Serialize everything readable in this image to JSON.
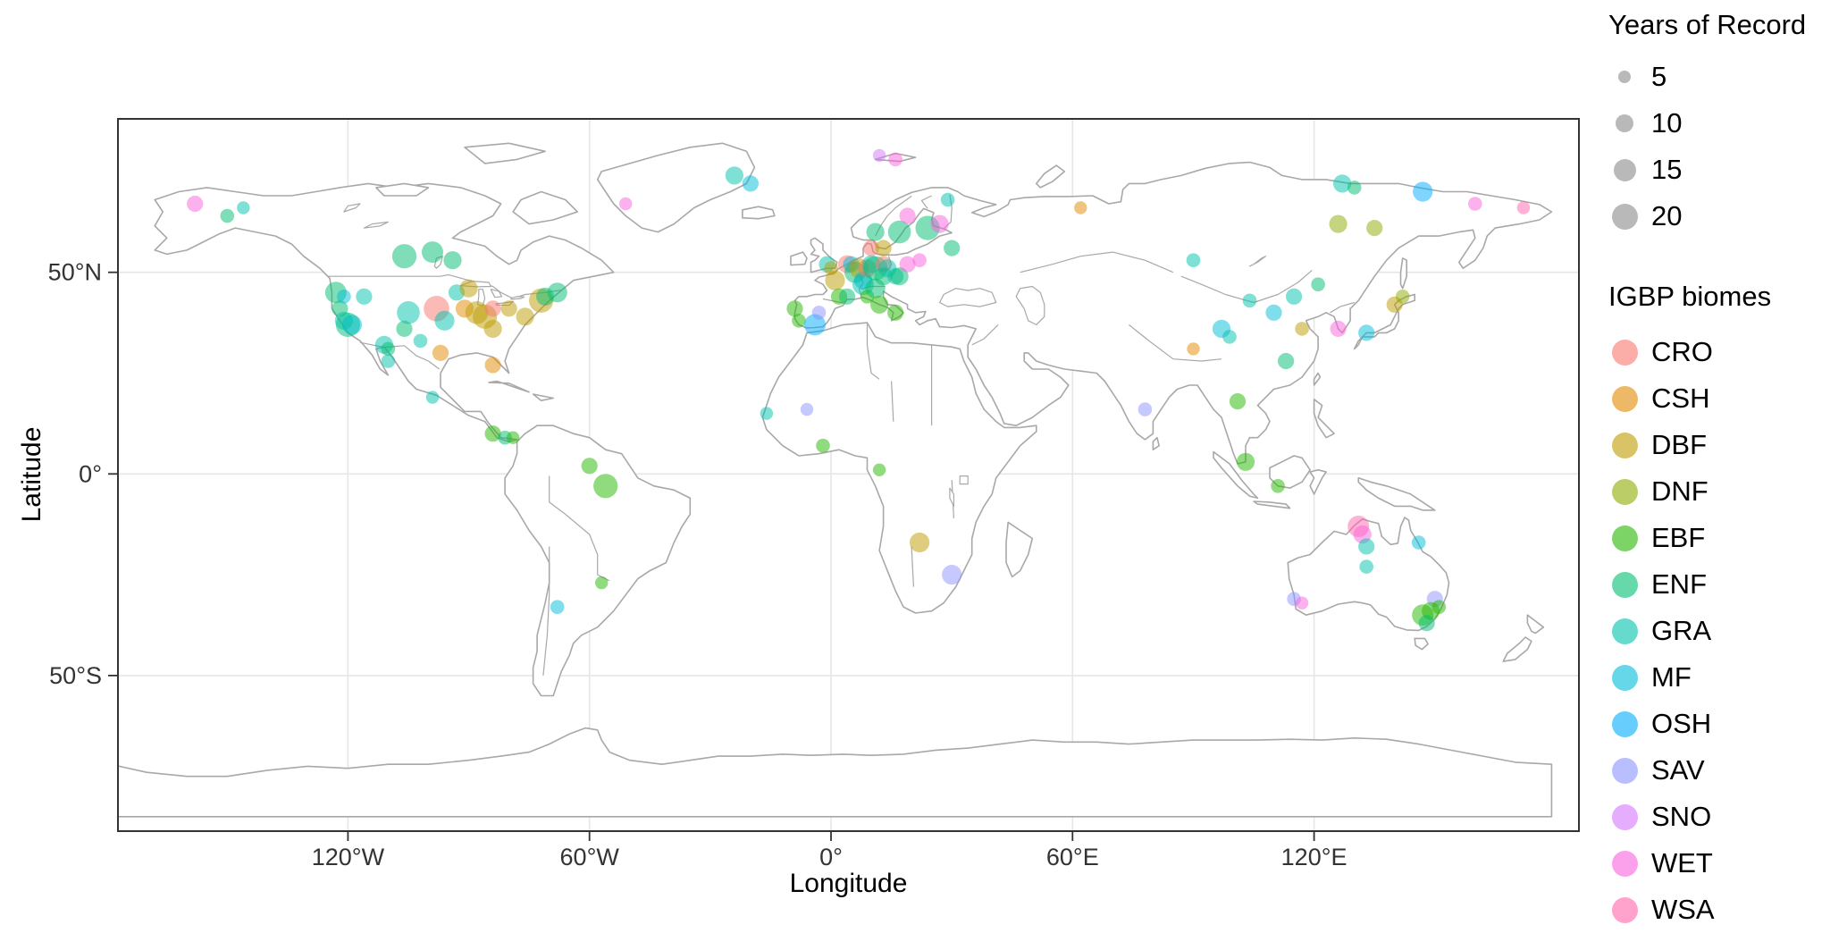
{
  "figure": {
    "background": "#FFFFFF",
    "panel_border_color": "#333333",
    "grid_color": "#E6E6E6",
    "map_outline_color": "#A8A8A8",
    "tick_text_color": "#333333"
  },
  "chart_data": {
    "type": "scatter",
    "title": "",
    "xlabel": "Longitude",
    "ylabel": "Latitude",
    "xlim": [
      -177,
      186
    ],
    "ylim": [
      -88.6,
      88
    ],
    "grid": true,
    "legend_position": "right",
    "x_ticks": [
      {
        "value": -120,
        "label": "120°W"
      },
      {
        "value": -60,
        "label": "60°W"
      },
      {
        "value": 0,
        "label": "0°"
      },
      {
        "value": 60,
        "label": "60°E"
      },
      {
        "value": 120,
        "label": "120°E"
      }
    ],
    "y_ticks": [
      {
        "value": 50,
        "label": "50°N"
      },
      {
        "value": 0,
        "label": "0°"
      },
      {
        "value": -50,
        "label": "50°S"
      }
    ],
    "size_legend": {
      "title": "Years of Record",
      "values": [
        5,
        10,
        15,
        20
      ],
      "swatch_color": "#737373"
    },
    "biome_legend": {
      "title": "IGBP biomes",
      "entries": [
        {
          "label": "CRO",
          "color": "#F8766D"
        },
        {
          "label": "CSH",
          "color": "#E18A00"
        },
        {
          "label": "DBF",
          "color": "#BE9C00"
        },
        {
          "label": "DNF",
          "color": "#8CAB00"
        },
        {
          "label": "EBF",
          "color": "#24B700"
        },
        {
          "label": "ENF",
          "color": "#00BE70"
        },
        {
          "label": "GRA",
          "color": "#00C1AB"
        },
        {
          "label": "MF",
          "color": "#00BBDA"
        },
        {
          "label": "OSH",
          "color": "#00ACFC"
        },
        {
          "label": "SAV",
          "color": "#8B93FF"
        },
        {
          "label": "SNO",
          "color": "#D575FE"
        },
        {
          "label": "WET",
          "color": "#F962DD"
        },
        {
          "label": "WSA",
          "color": "#FF65AC"
        }
      ]
    },
    "point_fields": [
      "lon",
      "lat",
      "biome",
      "years"
    ],
    "points": [
      [
        -158,
        67,
        "WET",
        8
      ],
      [
        -150,
        64,
        "ENF",
        6
      ],
      [
        -146,
        66,
        "GRA",
        5
      ],
      [
        -123,
        45,
        "ENF",
        14
      ],
      [
        -122,
        41,
        "ENF",
        8
      ],
      [
        -121,
        44,
        "MF",
        6
      ],
      [
        -120,
        37,
        "ENF",
        18
      ],
      [
        -119,
        37,
        "MF",
        12
      ],
      [
        -121,
        38,
        "GRA",
        10
      ],
      [
        -116,
        44,
        "GRA",
        8
      ],
      [
        -111,
        32,
        "GRA",
        10
      ],
      [
        -110,
        31,
        "ENF",
        6
      ],
      [
        -110,
        28,
        "GRA",
        6
      ],
      [
        -106,
        36,
        "ENF",
        8
      ],
      [
        -105,
        40,
        "GRA",
        16
      ],
      [
        -102,
        33,
        "GRA",
        6
      ],
      [
        -106,
        54,
        "ENF",
        18
      ],
      [
        -99,
        55,
        "ENF",
        14
      ],
      [
        -94,
        53,
        "ENF",
        10
      ],
      [
        -98,
        41,
        "CRO",
        20
      ],
      [
        -96,
        38,
        "GRA",
        12
      ],
      [
        -93,
        45,
        "GRA",
        8
      ],
      [
        -91,
        41,
        "CSH",
        10
      ],
      [
        -90,
        46,
        "DBF",
        10
      ],
      [
        -88,
        40,
        "DBF",
        16
      ],
      [
        -86,
        39,
        "DBF",
        18
      ],
      [
        -84,
        36,
        "DBF",
        10
      ],
      [
        -84,
        41,
        "CRO",
        8
      ],
      [
        -80,
        41,
        "DBF",
        8
      ],
      [
        -76,
        39,
        "DBF",
        10
      ],
      [
        -72,
        43,
        "DBF",
        18
      ],
      [
        -71,
        44,
        "ENF",
        10
      ],
      [
        -68,
        45,
        "ENF",
        12
      ],
      [
        -97,
        30,
        "CSH",
        8
      ],
      [
        -84,
        27,
        "CSH",
        8
      ],
      [
        -99,
        19,
        "GRA",
        5
      ],
      [
        -84,
        10,
        "EBF",
        8
      ],
      [
        -81,
        9,
        "ENF",
        6
      ],
      [
        -79,
        9,
        "EBF",
        5
      ],
      [
        -60,
        2,
        "EBF",
        8
      ],
      [
        -56,
        -3,
        "EBF",
        18
      ],
      [
        -57,
        -27,
        "EBF",
        5
      ],
      [
        -68,
        -33,
        "MF",
        6
      ],
      [
        -51,
        67,
        "WET",
        5
      ],
      [
        -24,
        74,
        "GRA",
        10
      ],
      [
        -20,
        72,
        "MF",
        8
      ],
      [
        12,
        79,
        "SNO",
        5
      ],
      [
        16,
        78,
        "WET",
        6
      ],
      [
        -9,
        41,
        "EBF",
        8
      ],
      [
        -8,
        38,
        "EBF",
        6
      ],
      [
        -4,
        37,
        "OSH",
        14
      ],
      [
        -3,
        40,
        "SAV",
        6
      ],
      [
        -1,
        52,
        "GRA",
        8
      ],
      [
        0,
        51,
        "DBF",
        6
      ],
      [
        1,
        48,
        "DBF",
        12
      ],
      [
        2,
        44,
        "EBF",
        8
      ],
      [
        4,
        44,
        "ENF",
        8
      ],
      [
        4,
        52,
        "CRO",
        10
      ],
      [
        5,
        52,
        "MF",
        8
      ],
      [
        6,
        50,
        "ENF",
        14
      ],
      [
        7,
        51,
        "DBF",
        12
      ],
      [
        8,
        48,
        "MF",
        10
      ],
      [
        8,
        47,
        "GRA",
        14
      ],
      [
        9,
        44,
        "EBF",
        6
      ],
      [
        9,
        51,
        "CRO",
        10
      ],
      [
        10,
        52,
        "GRA",
        10
      ],
      [
        10,
        56,
        "CRO",
        8
      ],
      [
        11,
        51,
        "ENF",
        18
      ],
      [
        11,
        46,
        "ENF",
        12
      ],
      [
        12,
        42,
        "EBF",
        10
      ],
      [
        13,
        52,
        "CRO",
        8
      ],
      [
        13,
        49,
        "ENF",
        10
      ],
      [
        14,
        51,
        "GRA",
        10
      ],
      [
        16,
        49,
        "GRA",
        8
      ],
      [
        17,
        49,
        "ENF",
        10
      ],
      [
        19,
        52,
        "WET",
        8
      ],
      [
        22,
        53,
        "WET",
        6
      ],
      [
        16,
        40,
        "EBF",
        8
      ],
      [
        11,
        60,
        "ENF",
        10
      ],
      [
        13,
        56,
        "DBF",
        8
      ],
      [
        17,
        60,
        "ENF",
        16
      ],
      [
        19,
        64,
        "WET",
        8
      ],
      [
        24,
        61,
        "ENF",
        18
      ],
      [
        27,
        62,
        "WET",
        10
      ],
      [
        29,
        68,
        "GRA",
        6
      ],
      [
        30,
        56,
        "ENF",
        8
      ],
      [
        -16,
        15,
        "GRA",
        5
      ],
      [
        -6,
        16,
        "SAV",
        5
      ],
      [
        -2,
        7,
        "EBF",
        6
      ],
      [
        12,
        1,
        "EBF",
        5
      ],
      [
        22,
        -17,
        "DBF",
        12
      ],
      [
        30,
        -25,
        "SAV",
        12
      ],
      [
        62,
        66,
        "CSH",
        5
      ],
      [
        78,
        16,
        "SAV",
        6
      ],
      [
        90,
        31,
        "CSH",
        5
      ],
      [
        90,
        53,
        "GRA",
        6
      ],
      [
        97,
        36,
        "MF",
        10
      ],
      [
        99,
        34,
        "GRA",
        6
      ],
      [
        104,
        43,
        "GRA",
        6
      ],
      [
        110,
        40,
        "MF",
        8
      ],
      [
        115,
        44,
        "GRA",
        8
      ],
      [
        117,
        36,
        "DBF",
        6
      ],
      [
        113,
        28,
        "ENF",
        8
      ],
      [
        121,
        47,
        "ENF",
        6
      ],
      [
        126,
        36,
        "WET",
        8
      ],
      [
        126,
        62,
        "DNF",
        10
      ],
      [
        135,
        61,
        "DNF",
        8
      ],
      [
        127,
        72,
        "GRA",
        10
      ],
      [
        130,
        71,
        "ENF",
        6
      ],
      [
        147,
        70,
        "OSH",
        12
      ],
      [
        160,
        67,
        "WET",
        6
      ],
      [
        172,
        66,
        "WSA",
        5
      ],
      [
        133,
        35,
        "MF",
        8
      ],
      [
        140,
        42,
        "DBF",
        8
      ],
      [
        142,
        44,
        "DNF",
        6
      ],
      [
        101,
        18,
        "EBF",
        8
      ],
      [
        103,
        3,
        "EBF",
        10
      ],
      [
        111,
        -3,
        "EBF",
        6
      ],
      [
        131,
        -13,
        "WSA",
        14
      ],
      [
        132,
        -15,
        "WET",
        10
      ],
      [
        133,
        -18,
        "GRA",
        8
      ],
      [
        133,
        -23,
        "GRA",
        6
      ],
      [
        146,
        -17,
        "MF",
        6
      ],
      [
        150,
        -31,
        "SAV",
        8
      ],
      [
        147,
        -35,
        "EBF",
        14
      ],
      [
        149,
        -34,
        "EBF",
        10
      ],
      [
        151,
        -33,
        "EBF",
        6
      ],
      [
        148,
        -37,
        "ENF",
        8
      ],
      [
        115,
        -31,
        "SAV",
        6
      ],
      [
        117,
        -32,
        "WET",
        5
      ]
    ]
  }
}
